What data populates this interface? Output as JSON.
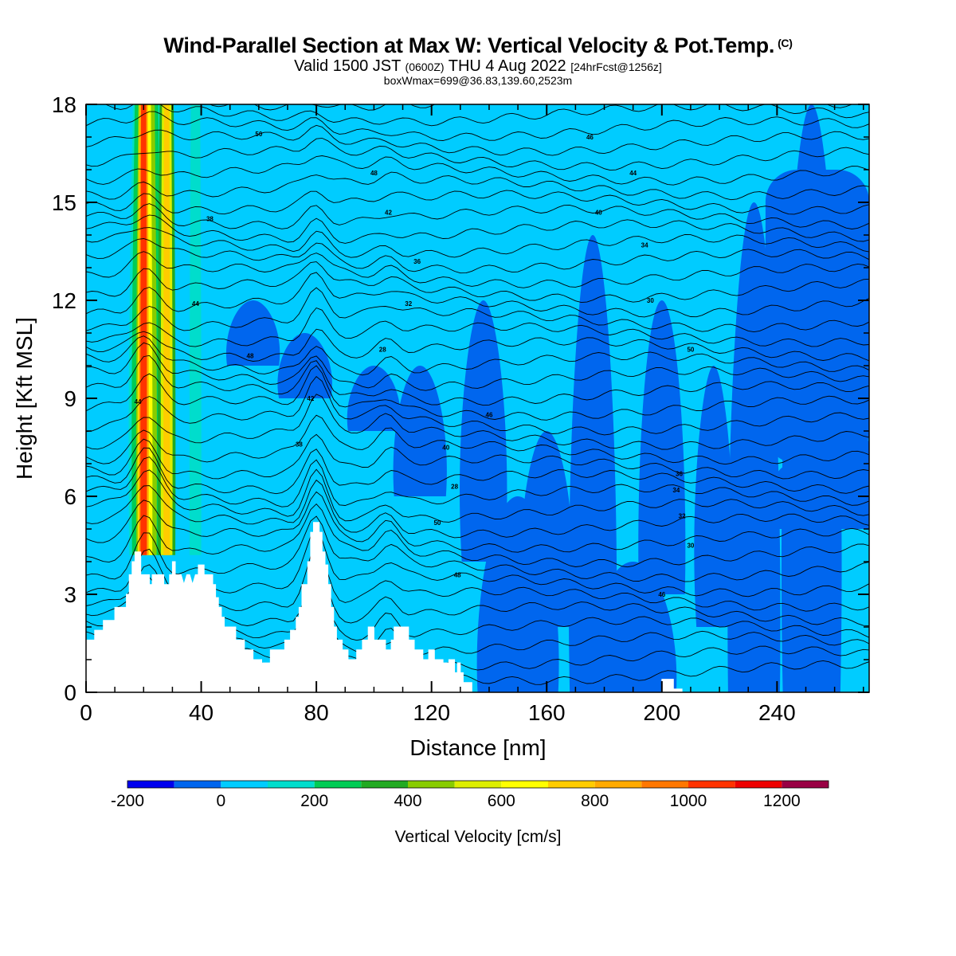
{
  "title": {
    "main": "Wind-Parallel Section at Max W: Vertical Velocity & Pot.Temp.",
    "copyright": "(C)",
    "valid_prefix": "Valid 1500 JST",
    "valid_utc": "(0600Z)",
    "valid_date": "THU 4 Aug 2022",
    "forecast": "[24hrFcst@1256z]",
    "box_info": "boxWmax=699@36.83,139.60,2523m"
  },
  "colors": {
    "c_neg200": "#0000ee",
    "c_neg100": "#0066ee",
    "c_0": "#00ccff",
    "c_100": "#00ddcc",
    "c_200": "#00cc55",
    "c_300": "#22aa22",
    "c_400": "#88cc00",
    "c_500": "#ddee00",
    "c_600": "#ffff00",
    "c_700": "#ffcc00",
    "c_800": "#ffaa00",
    "c_900": "#ff7700",
    "c_1000": "#ff3300",
    "c_1100": "#ee0000",
    "c_1200": "#990044",
    "c_1300": "#660088",
    "terrain": "#ffffff",
    "contour": "#000000"
  },
  "chart_data": {
    "type": "heatmap",
    "xlabel": "Distance [nm]",
    "ylabel": "Height [Kft MSL]",
    "xlim": [
      0,
      272
    ],
    "ylim": [
      0,
      18
    ],
    "xticks": [
      0,
      40,
      80,
      120,
      160,
      200,
      240
    ],
    "yticks": [
      0,
      3,
      6,
      9,
      12,
      15,
      18
    ],
    "colorbar": {
      "label": "Vertical Velocity [cm/s]",
      "bounds": [
        -200,
        -100,
        0,
        100,
        200,
        300,
        400,
        500,
        600,
        700,
        800,
        900,
        1000,
        1100,
        1200,
        1300
      ],
      "tick_labels": [
        "-200",
        "0",
        "200",
        "400",
        "600",
        "800",
        "1000",
        "1200"
      ],
      "tick_values": [
        -200,
        0,
        200,
        400,
        600,
        800,
        1000,
        1200
      ]
    },
    "terrain_profile_kft": [
      [
        0,
        0.9
      ],
      [
        0,
        1.6
      ],
      [
        3,
        1.6
      ],
      [
        3,
        1.9
      ],
      [
        6,
        1.9
      ],
      [
        6,
        2.2
      ],
      [
        10,
        2.2
      ],
      [
        10,
        2.6
      ],
      [
        14,
        2.6
      ],
      [
        14,
        3.0
      ],
      [
        15,
        3.0
      ],
      [
        15,
        3.6
      ],
      [
        16,
        3.6
      ],
      [
        16,
        4.0
      ],
      [
        17,
        4.0
      ],
      [
        17,
        4.3
      ],
      [
        19,
        4.3
      ],
      [
        19,
        3.6
      ],
      [
        22,
        3.6
      ],
      [
        22,
        3.3
      ],
      [
        23,
        3.3
      ],
      [
        23,
        3.6
      ],
      [
        27,
        3.6
      ],
      [
        27,
        3.3
      ],
      [
        29,
        3.3
      ],
      [
        29,
        3.6
      ],
      [
        30,
        3.6
      ],
      [
        30,
        4.0
      ],
      [
        31,
        4.0
      ],
      [
        31,
        3.6
      ],
      [
        33,
        3.6
      ],
      [
        34,
        3.3
      ],
      [
        35,
        3.6
      ],
      [
        36,
        3.6
      ],
      [
        37,
        3.3
      ],
      [
        38,
        3.6
      ],
      [
        39,
        3.6
      ],
      [
        39,
        3.9
      ],
      [
        41,
        3.9
      ],
      [
        41,
        3.6
      ],
      [
        44,
        3.6
      ],
      [
        44,
        3.3
      ],
      [
        45,
        3.3
      ],
      [
        45,
        2.9
      ],
      [
        46,
        2.9
      ],
      [
        46,
        2.6
      ],
      [
        47,
        2.6
      ],
      [
        47,
        2.3
      ],
      [
        48,
        2.3
      ],
      [
        48,
        2.0
      ],
      [
        52,
        2.0
      ],
      [
        52,
        1.6
      ],
      [
        55,
        1.6
      ],
      [
        55,
        1.3
      ],
      [
        58,
        1.3
      ],
      [
        58,
        1.0
      ],
      [
        61,
        1.0
      ],
      [
        61,
        0.9
      ],
      [
        64,
        0.9
      ],
      [
        64,
        1.3
      ],
      [
        69,
        1.3
      ],
      [
        69,
        1.6
      ],
      [
        71,
        1.6
      ],
      [
        71,
        1.9
      ],
      [
        73,
        1.9
      ],
      [
        73,
        2.3
      ],
      [
        74,
        2.3
      ],
      [
        74,
        2.6
      ],
      [
        75,
        2.6
      ],
      [
        75,
        3.3
      ],
      [
        77,
        3.3
      ],
      [
        77,
        4.0
      ],
      [
        78,
        4.0
      ],
      [
        78,
        4.9
      ],
      [
        79,
        4.9
      ],
      [
        79,
        5.2
      ],
      [
        81,
        5.2
      ],
      [
        81,
        4.9
      ],
      [
        82,
        4.9
      ],
      [
        82,
        4.3
      ],
      [
        83,
        4.3
      ],
      [
        83,
        3.9
      ],
      [
        84,
        3.9
      ],
      [
        84,
        3.3
      ],
      [
        85,
        3.3
      ],
      [
        85,
        2.6
      ],
      [
        86,
        2.6
      ],
      [
        86,
        2.0
      ],
      [
        87,
        2.0
      ],
      [
        87,
        1.6
      ],
      [
        89,
        1.6
      ],
      [
        89,
        1.3
      ],
      [
        91,
        1.3
      ],
      [
        91,
        1.0
      ],
      [
        94,
        1.0
      ],
      [
        94,
        1.3
      ],
      [
        96,
        1.3
      ],
      [
        96,
        1.6
      ],
      [
        98,
        1.6
      ],
      [
        98,
        2.0
      ],
      [
        100,
        2.0
      ],
      [
        100,
        1.6
      ],
      [
        104,
        1.6
      ],
      [
        104,
        1.3
      ],
      [
        106,
        1.3
      ],
      [
        106,
        1.6
      ],
      [
        107,
        1.6
      ],
      [
        107,
        2.0
      ],
      [
        112,
        2.0
      ],
      [
        112,
        1.6
      ],
      [
        114,
        1.6
      ],
      [
        114,
        1.3
      ],
      [
        117,
        1.3
      ],
      [
        117,
        1.0
      ],
      [
        119,
        1.0
      ],
      [
        119,
        1.3
      ],
      [
        121,
        1.3
      ],
      [
        121,
        1.0
      ],
      [
        124,
        1.0
      ],
      [
        124,
        0.9
      ],
      [
        126,
        0.9
      ],
      [
        126,
        1.0
      ],
      [
        128,
        1.0
      ],
      [
        128,
        0.6
      ],
      [
        129,
        0.6
      ],
      [
        129,
        0.9
      ],
      [
        130,
        0.9
      ],
      [
        130,
        0.6
      ],
      [
        131,
        0.6
      ],
      [
        131,
        0.3
      ],
      [
        134,
        0.3
      ],
      [
        134,
        0
      ],
      [
        200,
        0
      ],
      [
        200,
        0.4
      ],
      [
        204,
        0.4
      ],
      [
        204,
        0.1
      ],
      [
        207,
        0.1
      ],
      [
        207,
        0
      ],
      [
        272,
        0
      ]
    ],
    "theta_contour_labels": [
      "50",
      "48",
      "46",
      "44",
      "42",
      "40",
      "38",
      "36",
      "34",
      "32",
      "30",
      "28"
    ]
  }
}
